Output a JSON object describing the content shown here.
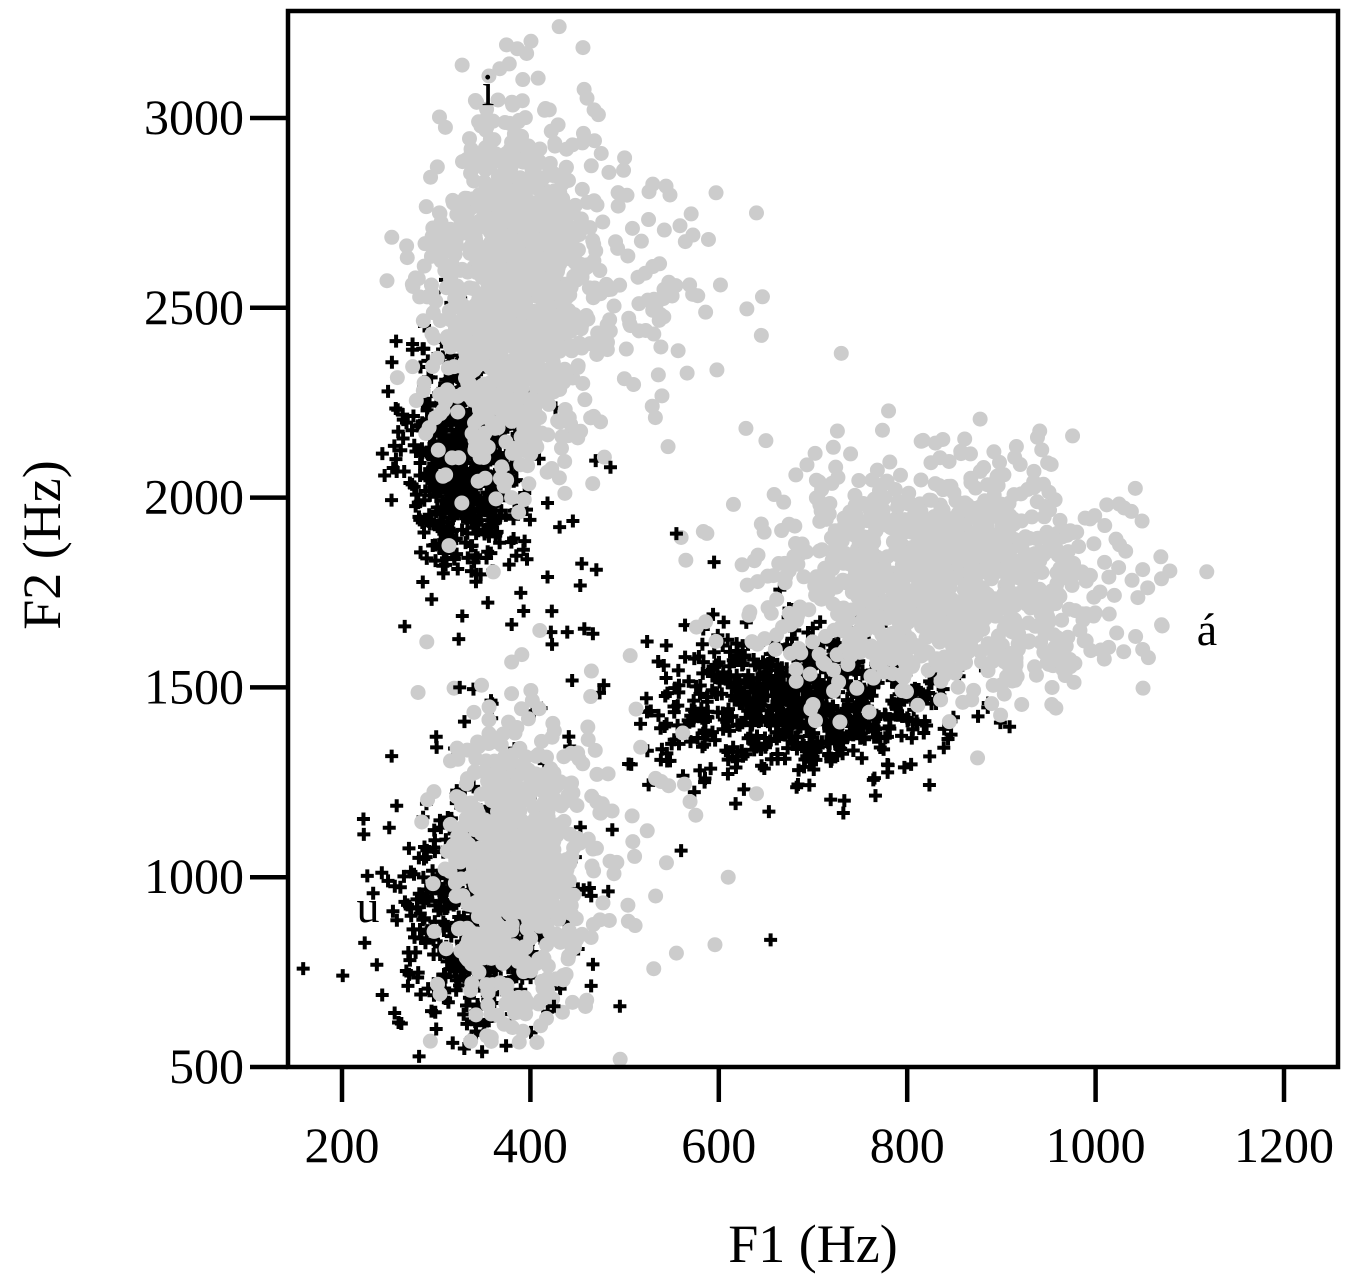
{
  "colors": {
    "background": "#ffffff",
    "axis": "#000000",
    "series_black": "#000000",
    "series_gray": "#cccccc"
  },
  "chart_data": {
    "type": "scatter",
    "title": "",
    "xlabel": "F1 (Hz)",
    "ylabel": "F2 (Hz)",
    "xlim": [
      150,
      1230
    ],
    "ylim": [
      500,
      3290
    ],
    "x_ticks": [
      200,
      400,
      600,
      800,
      1000,
      1200
    ],
    "y_ticks": [
      500,
      1000,
      1500,
      2000,
      2500,
      3000
    ],
    "grid": false,
    "legend": "none",
    "annotations": [
      {
        "text": "i",
        "x": 365,
        "y": 3070
      },
      {
        "text": "á",
        "x": 1115,
        "y": 1640
      },
      {
        "text": "u",
        "x": 228,
        "y": 925
      }
    ],
    "series": [
      {
        "marker": "plus",
        "color": "#000000",
        "clusters": [
          {
            "vowel": "i",
            "center": [
              330,
              2120
            ],
            "sd": [
              30,
              150
            ],
            "n": 700
          },
          {
            "vowel": "á",
            "center": [
              690,
              1460
            ],
            "sd": [
              75,
              95
            ],
            "n": 750
          },
          {
            "vowel": "u",
            "center": [
              345,
              900
            ],
            "sd": [
              45,
              160
            ],
            "n": 550
          },
          {
            "vowel": "",
            "center": [
              400,
              1580
            ],
            "sd": [
              70,
              200
            ],
            "n": 40
          }
        ]
      },
      {
        "marker": "circle",
        "color": "#cccccc",
        "clusters": [
          {
            "vowel": "i",
            "center": [
              380,
              2550
            ],
            "sd": [
              40,
              230
            ],
            "n": 1100
          },
          {
            "vowel": "i",
            "center": [
              480,
              2550
            ],
            "sd": [
              70,
              170
            ],
            "n": 130
          },
          {
            "vowel": "á",
            "center": [
              840,
              1790
            ],
            "sd": [
              90,
              140
            ],
            "n": 1100
          },
          {
            "vowel": "u",
            "center": [
              385,
              1020
            ],
            "sd": [
              35,
              190
            ],
            "n": 650
          },
          {
            "vowel": "u",
            "center": [
              470,
              1150
            ],
            "sd": [
              60,
              200
            ],
            "n": 60
          }
        ],
        "points": [
          [
            396,
            3170
          ],
          [
            345,
            2990
          ],
          [
            500,
            2895
          ],
          [
            640,
            2750
          ],
          [
            730,
            2380
          ],
          [
            310,
            2060
          ],
          [
            380,
            2000
          ],
          [
            275,
            2345
          ],
          [
            560,
            1895
          ],
          [
            650,
            2150
          ],
          [
            610,
            1000
          ],
          [
            555,
            800
          ],
          [
            290,
            1620
          ],
          [
            410,
            1650
          ],
          [
            640,
            1220
          ],
          [
            1050,
            1600
          ],
          [
            1070,
            1665
          ],
          [
            565,
            1835
          ],
          [
            700,
            1455
          ],
          [
            660,
            1600
          ]
        ]
      },
      {
        "marker": "plus",
        "color": "#000000",
        "points": [
          [
            655,
            835
          ],
          [
            300,
            1370
          ],
          [
            485,
            2080
          ],
          [
            470,
            1810
          ],
          [
            595,
            1830
          ],
          [
            560,
            1070
          ],
          [
            555,
            1905
          ],
          [
            290,
            1840
          ],
          [
            300,
            600
          ],
          [
            495,
            660
          ],
          [
            425,
            660
          ],
          [
            330,
            1410
          ],
          [
            325,
            1500
          ]
        ]
      }
    ]
  }
}
